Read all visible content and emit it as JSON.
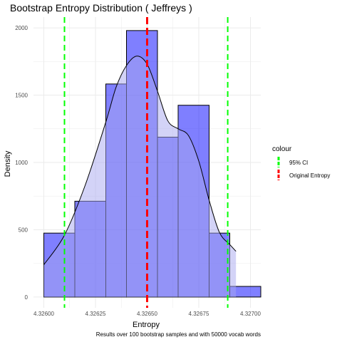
{
  "chart_data": {
    "type": "histogram",
    "title": "Bootstrap Entropy Distribution ( Jeffreys )",
    "xlabel": "Entropy",
    "ylabel": "Density",
    "caption": "Results over 100 bootstrap samples and with 50000 vocab words",
    "xlim": [
      4.32595,
      4.32705
    ],
    "ylim": [
      -80,
      2080
    ],
    "x_ticks": [
      4.326,
      4.32625,
      4.3265,
      4.32675,
      4.327
    ],
    "x_tick_labels": [
      "4.32600",
      "4.32625",
      "4.32650",
      "4.32675",
      "4.32700"
    ],
    "y_ticks": [
      0,
      500,
      1000,
      1500,
      2000
    ],
    "y_tick_labels": [
      "0",
      "500",
      "1000",
      "1500",
      "2000"
    ],
    "bins": [
      {
        "x0": 4.326,
        "x1": 4.32615,
        "density": 475
      },
      {
        "x0": 4.32615,
        "x1": 4.3263,
        "density": 712
      },
      {
        "x0": 4.3263,
        "x1": 4.3264,
        "density": 1583
      },
      {
        "x0": 4.3264,
        "x1": 4.32655,
        "density": 1980
      },
      {
        "x0": 4.32655,
        "x1": 4.32665,
        "density": 1188
      },
      {
        "x0": 4.32665,
        "x1": 4.3268,
        "density": 1425
      },
      {
        "x0": 4.3268,
        "x1": 4.3269,
        "density": 475
      },
      {
        "x0": 4.3269,
        "x1": 4.32705,
        "density": 79
      }
    ],
    "density_curve": {
      "x": [
        4.326,
        4.3261,
        4.3262,
        4.3263,
        4.32635,
        4.3264,
        4.32645,
        4.3265,
        4.32655,
        4.3266,
        4.32665,
        4.3267,
        4.32675,
        4.3268,
        4.32685,
        4.3269,
        4.32693
      ],
      "y": [
        240,
        460,
        830,
        1300,
        1560,
        1720,
        1790,
        1730,
        1530,
        1310,
        1250,
        1200,
        1010,
        720,
        480,
        390,
        340
      ]
    },
    "vlines": [
      {
        "x": 4.3261,
        "series": "95% CI"
      },
      {
        "x": 4.32689,
        "series": "95% CI"
      },
      {
        "x": 4.3265,
        "series": "Original Entropy"
      }
    ],
    "legend": {
      "title": "colour",
      "position": "right",
      "entries": [
        {
          "label": "95% CI",
          "color": "#00ff00"
        },
        {
          "label": "Original Entropy",
          "color": "#ff0000"
        }
      ]
    },
    "grid": true,
    "colors": {
      "bar_fill": "#0000ff",
      "bar_stroke": "#000000",
      "density_fill": "#a8a8f0",
      "ci_line": "#00ff00",
      "original_line": "#ff0000",
      "grid": "#ebebeb"
    }
  }
}
